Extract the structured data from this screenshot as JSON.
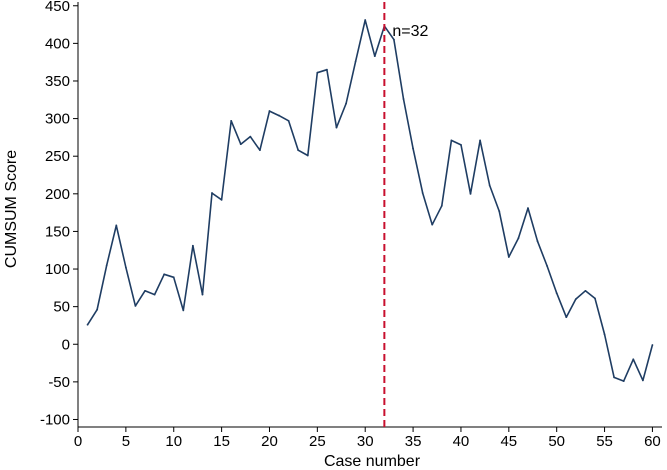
{
  "chart_data": {
    "type": "line",
    "xlabel": "Case number",
    "ylabel": "CUMSUM Score",
    "xlim": [
      0,
      61
    ],
    "ylim": [
      -110,
      455
    ],
    "xticks": [
      0,
      5,
      10,
      15,
      20,
      25,
      30,
      35,
      40,
      45,
      50,
      55,
      60
    ],
    "yticks": [
      -100,
      -50,
      0,
      50,
      100,
      150,
      200,
      250,
      300,
      350,
      400,
      450
    ],
    "grid": false,
    "series": [
      {
        "color": "#1f3d63",
        "x": [
          1,
          2,
          3,
          4,
          5,
          6,
          7,
          8,
          9,
          10,
          11,
          12,
          13,
          14,
          15,
          16,
          17,
          18,
          19,
          20,
          21,
          22,
          23,
          24,
          25,
          26,
          27,
          28,
          29,
          30,
          31,
          32,
          33,
          34,
          35,
          36,
          37,
          38,
          39,
          40,
          41,
          42,
          43,
          44,
          45,
          46,
          47,
          48,
          49,
          50,
          51,
          52,
          53,
          54,
          55,
          56,
          57,
          58,
          59,
          60
        ],
        "y": [
          26,
          46,
          105,
          158,
          102,
          51,
          71,
          66,
          93,
          89,
          45,
          131,
          66,
          201,
          192,
          297,
          266,
          276,
          258,
          310,
          304,
          297,
          258,
          251,
          361,
          365,
          288,
          320,
          376,
          431,
          383,
          423,
          405,
          326,
          260,
          201,
          159,
          184,
          271,
          265,
          200,
          271,
          211,
          177,
          116,
          141,
          181,
          137,
          104,
          68,
          36,
          60,
          71,
          61,
          13,
          -44,
          -49,
          -20,
          -48,
          -1
        ]
      }
    ],
    "annotations": [
      {
        "text": "n=32",
        "x": 32,
        "line_color": "#c8102e"
      }
    ]
  }
}
